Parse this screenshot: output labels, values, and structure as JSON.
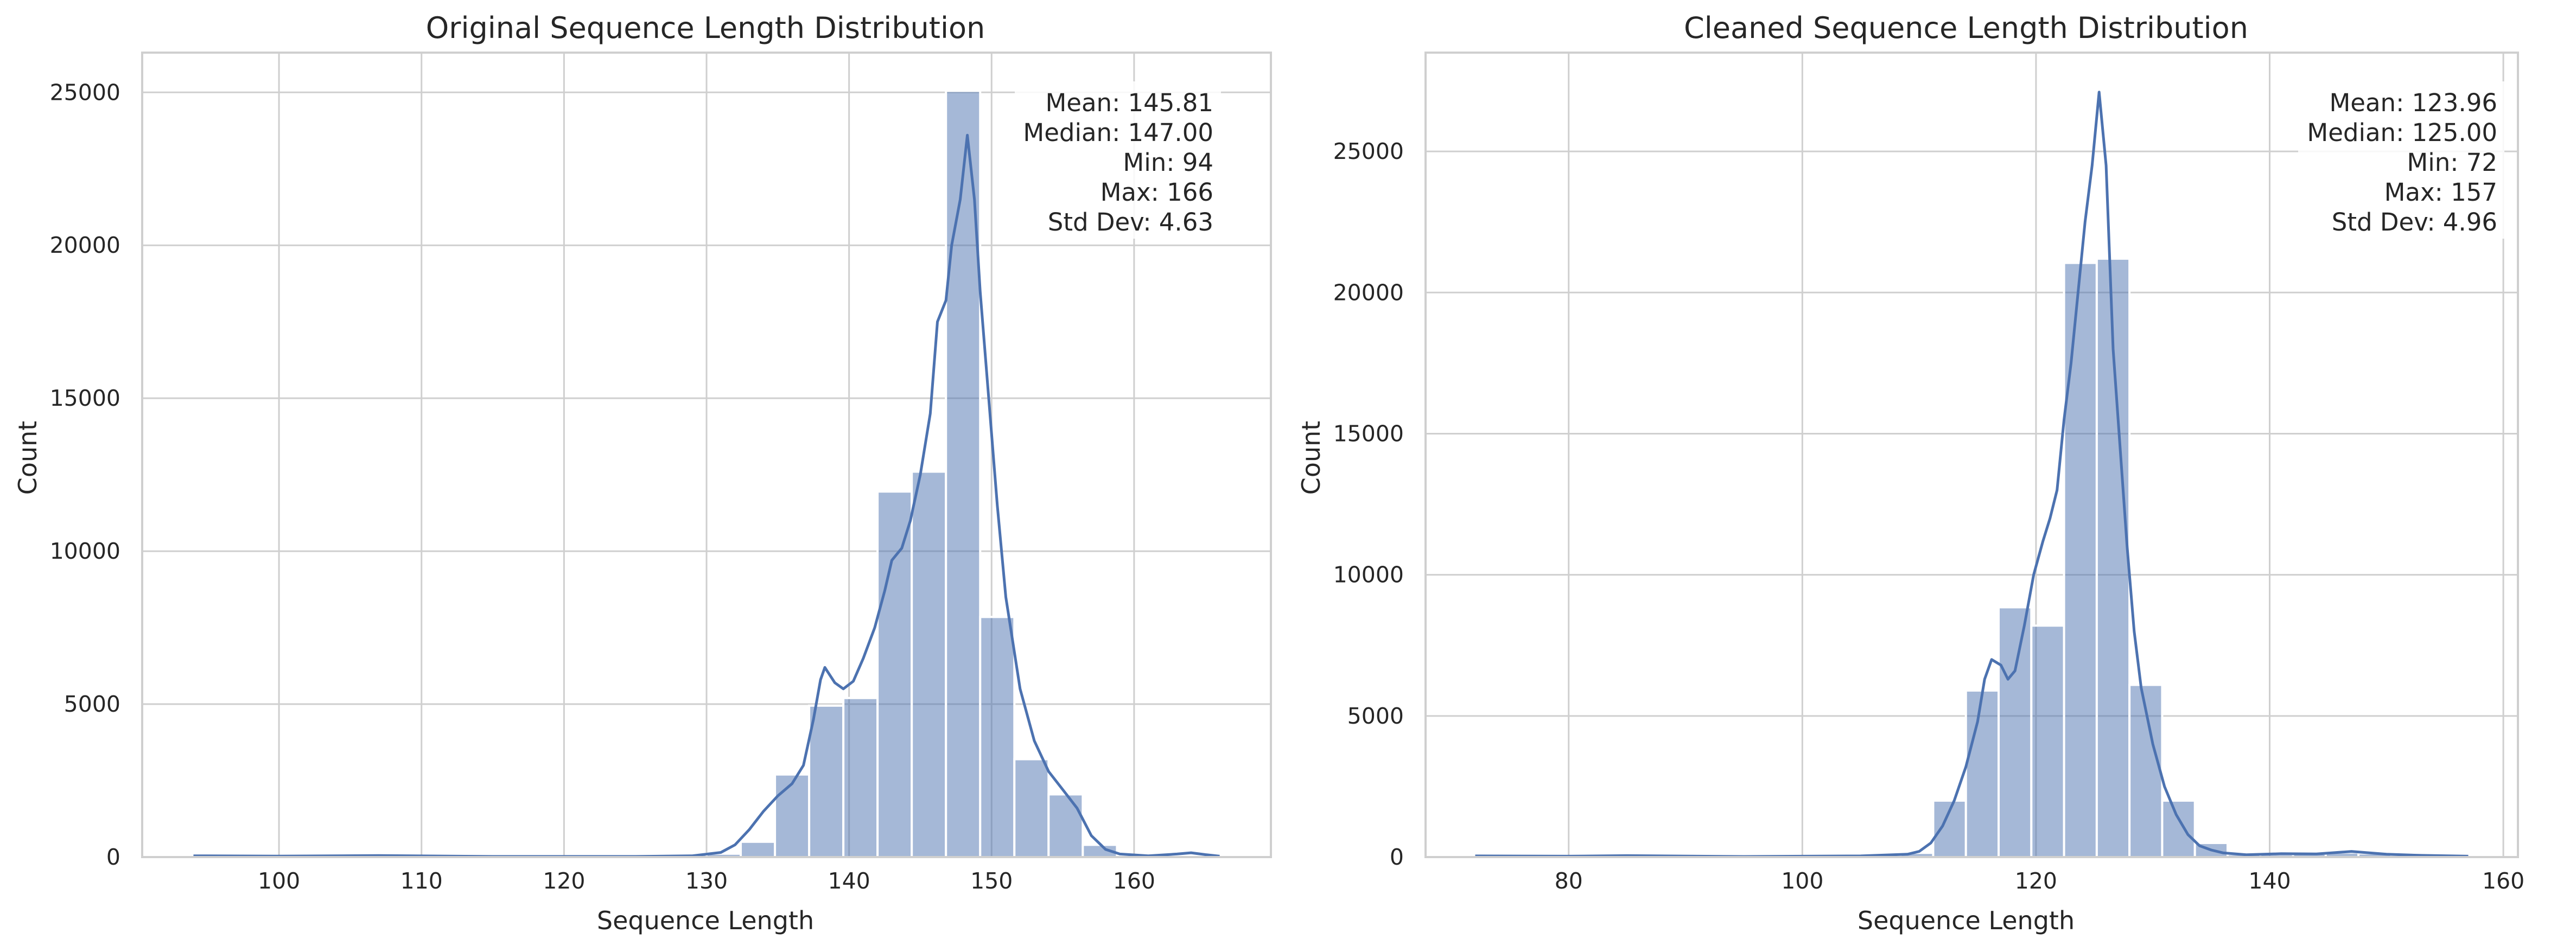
{
  "figure": {
    "background": "#ffffff",
    "bar_color": "#4c72b0",
    "bar_alpha": 0.5,
    "kde_color": "#4c72b0",
    "grid_color": "#cfcfcf",
    "spine_color": "#cfcfcf"
  },
  "chart_data": [
    {
      "type": "bar",
      "subtype": "histogram-with-kde",
      "title": "Original Sequence Length Distribution",
      "xlabel": "Sequence Length",
      "ylabel": "Count",
      "xlim": [
        90.4,
        169.6
      ],
      "ylim": [
        0,
        26300
      ],
      "xticks": [
        100,
        110,
        120,
        130,
        140,
        150,
        160
      ],
      "yticks": [
        0,
        5000,
        10000,
        15000,
        20000,
        25000
      ],
      "grid": true,
      "bins": [
        {
          "x0": 94.0,
          "x1": 96.4,
          "count": 60
        },
        {
          "x0": 96.4,
          "x1": 98.8,
          "count": 40
        },
        {
          "x0": 98.8,
          "x1": 101.2,
          "count": 30
        },
        {
          "x0": 101.2,
          "x1": 103.6,
          "count": 30
        },
        {
          "x0": 103.6,
          "x1": 106.0,
          "count": 30
        },
        {
          "x0": 106.0,
          "x1": 108.4,
          "count": 70
        },
        {
          "x0": 108.4,
          "x1": 110.8,
          "count": 30
        },
        {
          "x0": 110.8,
          "x1": 113.2,
          "count": 30
        },
        {
          "x0": 113.2,
          "x1": 115.6,
          "count": 30
        },
        {
          "x0": 115.6,
          "x1": 118.0,
          "count": 20
        },
        {
          "x0": 118.0,
          "x1": 120.4,
          "count": 30
        },
        {
          "x0": 120.4,
          "x1": 122.8,
          "count": 30
        },
        {
          "x0": 122.8,
          "x1": 125.2,
          "count": 40
        },
        {
          "x0": 125.2,
          "x1": 127.6,
          "count": 60
        },
        {
          "x0": 127.6,
          "x1": 130.0,
          "count": 90
        },
        {
          "x0": 130.0,
          "x1": 132.4,
          "count": 110
        },
        {
          "x0": 132.4,
          "x1": 134.8,
          "count": 500
        },
        {
          "x0": 134.8,
          "x1": 137.2,
          "count": 2700
        },
        {
          "x0": 137.2,
          "x1": 139.6,
          "count": 4950
        },
        {
          "x0": 139.6,
          "x1": 142.0,
          "count": 5200
        },
        {
          "x0": 142.0,
          "x1": 144.4,
          "count": 11950
        },
        {
          "x0": 144.4,
          "x1": 146.8,
          "count": 12600
        },
        {
          "x0": 146.8,
          "x1": 149.2,
          "count": 25050
        },
        {
          "x0": 149.2,
          "x1": 151.6,
          "count": 7850
        },
        {
          "x0": 151.6,
          "x1": 154.0,
          "count": 3200
        },
        {
          "x0": 154.0,
          "x1": 156.4,
          "count": 2050
        },
        {
          "x0": 156.4,
          "x1": 158.8,
          "count": 400
        },
        {
          "x0": 158.8,
          "x1": 161.2,
          "count": 60
        },
        {
          "x0": 161.2,
          "x1": 163.6,
          "count": 40
        },
        {
          "x0": 163.6,
          "x1": 166.0,
          "count": 60
        }
      ],
      "kde": [
        [
          94,
          40
        ],
        [
          100,
          30
        ],
        [
          107,
          50
        ],
        [
          115,
          20
        ],
        [
          125,
          20
        ],
        [
          129,
          40
        ],
        [
          131,
          150
        ],
        [
          132,
          400
        ],
        [
          133,
          900
        ],
        [
          134,
          1500
        ],
        [
          135,
          2000
        ],
        [
          136,
          2400
        ],
        [
          136.8,
          3000
        ],
        [
          137.5,
          4500
        ],
        [
          138.0,
          5800
        ],
        [
          138.3,
          6200
        ],
        [
          139.0,
          5700
        ],
        [
          139.6,
          5500
        ],
        [
          140.3,
          5750
        ],
        [
          141.0,
          6500
        ],
        [
          141.8,
          7500
        ],
        [
          142.5,
          8700
        ],
        [
          143.0,
          9700
        ],
        [
          143.7,
          10100
        ],
        [
          144.3,
          11000
        ],
        [
          145.0,
          12500
        ],
        [
          145.7,
          14500
        ],
        [
          146.2,
          17500
        ],
        [
          146.8,
          18200
        ],
        [
          147.2,
          20000
        ],
        [
          147.8,
          21500
        ],
        [
          148.3,
          23600
        ],
        [
          148.8,
          21500
        ],
        [
          149.2,
          18500
        ],
        [
          149.8,
          15000
        ],
        [
          150.4,
          11500
        ],
        [
          151.0,
          8500
        ],
        [
          152.0,
          5500
        ],
        [
          153.0,
          3800
        ],
        [
          154.0,
          2800
        ],
        [
          155.0,
          2200
        ],
        [
          156.0,
          1600
        ],
        [
          157.0,
          700
        ],
        [
          158.0,
          250
        ],
        [
          159.0,
          100
        ],
        [
          161.0,
          40
        ],
        [
          163.0,
          100
        ],
        [
          164.0,
          140
        ],
        [
          165.0,
          80
        ],
        [
          166.0,
          30
        ]
      ],
      "stats": {
        "mean": "Mean: 145.81",
        "median": "Median: 147.00",
        "min": "Min: 94",
        "max": "Max: 166",
        "std": "Std Dev: 4.63"
      }
    },
    {
      "type": "bar",
      "subtype": "histogram-with-kde",
      "title": "Cleaned Sequence Length Distribution",
      "xlabel": "Sequence Length",
      "ylabel": "Count",
      "xlim": [
        67.75,
        161.25
      ],
      "ylim": [
        0,
        28500
      ],
      "xticks": [
        80,
        100,
        120,
        140,
        160
      ],
      "yticks": [
        0,
        5000,
        10000,
        15000,
        20000,
        25000
      ],
      "grid": true,
      "bins": [
        {
          "x0": 72.0,
          "x1": 74.8,
          "count": 60
        },
        {
          "x0": 74.8,
          "x1": 77.6,
          "count": 40
        },
        {
          "x0": 77.6,
          "x1": 80.4,
          "count": 30
        },
        {
          "x0": 80.4,
          "x1": 83.2,
          "count": 30
        },
        {
          "x0": 83.2,
          "x1": 86.0,
          "count": 60
        },
        {
          "x0": 86.0,
          "x1": 88.8,
          "count": 30
        },
        {
          "x0": 88.8,
          "x1": 91.6,
          "count": 30
        },
        {
          "x0": 91.6,
          "x1": 94.4,
          "count": 30
        },
        {
          "x0": 94.4,
          "x1": 97.2,
          "count": 40
        },
        {
          "x0": 97.2,
          "x1": 100.0,
          "count": 30
        },
        {
          "x0": 100.0,
          "x1": 102.8,
          "count": 30
        },
        {
          "x0": 102.8,
          "x1": 105.6,
          "count": 40
        },
        {
          "x0": 105.6,
          "x1": 108.4,
          "count": 60
        },
        {
          "x0": 108.4,
          "x1": 111.2,
          "count": 150
        },
        {
          "x0": 111.2,
          "x1": 114.0,
          "count": 2000
        },
        {
          "x0": 114.0,
          "x1": 116.8,
          "count": 5900
        },
        {
          "x0": 116.8,
          "x1": 119.6,
          "count": 8850
        },
        {
          "x0": 119.6,
          "x1": 122.4,
          "count": 8200
        },
        {
          "x0": 122.4,
          "x1": 125.2,
          "count": 21050
        },
        {
          "x0": 125.2,
          "x1": 128.0,
          "count": 21200
        },
        {
          "x0": 128.0,
          "x1": 130.8,
          "count": 6100
        },
        {
          "x0": 130.8,
          "x1": 133.6,
          "count": 2000
        },
        {
          "x0": 133.6,
          "x1": 136.4,
          "count": 500
        },
        {
          "x0": 136.4,
          "x1": 139.2,
          "count": 100
        },
        {
          "x0": 139.2,
          "x1": 142.0,
          "count": 100
        },
        {
          "x0": 142.0,
          "x1": 144.8,
          "count": 120
        },
        {
          "x0": 144.8,
          "x1": 147.6,
          "count": 160
        },
        {
          "x0": 147.6,
          "x1": 150.4,
          "count": 130
        },
        {
          "x0": 150.4,
          "x1": 153.2,
          "count": 60
        },
        {
          "x0": 153.2,
          "x1": 157.0,
          "count": 50
        }
      ],
      "kde": [
        [
          72,
          40
        ],
        [
          80,
          30
        ],
        [
          85,
          50
        ],
        [
          95,
          20
        ],
        [
          105,
          40
        ],
        [
          109,
          100
        ],
        [
          110,
          200
        ],
        [
          111,
          500
        ],
        [
          112,
          1100
        ],
        [
          113,
          2000
        ],
        [
          114,
          3200
        ],
        [
          115,
          4800
        ],
        [
          115.6,
          6300
        ],
        [
          116.2,
          7000
        ],
        [
          117.0,
          6800
        ],
        [
          117.6,
          6300
        ],
        [
          118.2,
          6600
        ],
        [
          119.0,
          8200
        ],
        [
          119.8,
          10000
        ],
        [
          120.6,
          11200
        ],
        [
          121.2,
          12000
        ],
        [
          121.8,
          13000
        ],
        [
          122.4,
          15500
        ],
        [
          123.0,
          17500
        ],
        [
          123.6,
          20000
        ],
        [
          124.2,
          22500
        ],
        [
          124.8,
          24500
        ],
        [
          125.4,
          27100
        ],
        [
          126.0,
          24500
        ],
        [
          126.6,
          18000
        ],
        [
          127.2,
          14500
        ],
        [
          127.8,
          11000
        ],
        [
          128.4,
          8000
        ],
        [
          129.0,
          6000
        ],
        [
          130.0,
          4000
        ],
        [
          131.0,
          2500
        ],
        [
          132.0,
          1500
        ],
        [
          133.0,
          800
        ],
        [
          134.0,
          400
        ],
        [
          135.0,
          250
        ],
        [
          136.0,
          150
        ],
        [
          138.0,
          80
        ],
        [
          141.0,
          120
        ],
        [
          144.0,
          110
        ],
        [
          147.0,
          200
        ],
        [
          150.0,
          100
        ],
        [
          153.0,
          60
        ],
        [
          157.0,
          30
        ]
      ],
      "stats": {
        "mean": "Mean: 123.96",
        "median": "Median: 125.00",
        "min": "Min: 72",
        "max": "Max: 157",
        "std": "Std Dev: 4.96"
      }
    }
  ]
}
